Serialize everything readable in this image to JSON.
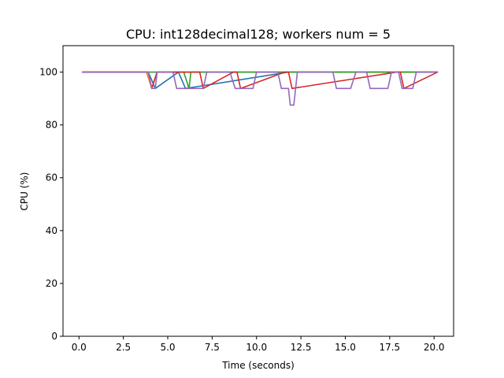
{
  "chart_data": {
    "type": "line",
    "title": "CPU: int128decimal128; workers num = 5",
    "xlabel": "Time (seconds)",
    "ylabel": "CPU (%)",
    "xlim": [
      -0.9,
      21.1
    ],
    "ylim": [
      0,
      110
    ],
    "xticks": [
      0.0,
      2.5,
      5.0,
      7.5,
      10.0,
      12.5,
      15.0,
      17.5,
      20.0
    ],
    "xtick_labels": [
      "0.0",
      "2.5",
      "5.0",
      "7.5",
      "10.0",
      "12.5",
      "15.0",
      "17.5",
      "20.0"
    ],
    "yticks": [
      0,
      20,
      40,
      60,
      80,
      100
    ],
    "ytick_labels": [
      "0",
      "20",
      "40",
      "60",
      "80",
      "100"
    ],
    "grid": false,
    "series": [
      {
        "color": "#1f77b4",
        "x": [
          0.2,
          3.9,
          4.3,
          5.6,
          6.0,
          11.8,
          12.2,
          20.2
        ],
        "y": [
          100,
          100,
          93.8,
          100,
          93.8,
          100,
          100,
          100
        ]
      },
      {
        "color": "#ff7f0e",
        "x": [
          0.2,
          3.8,
          4.1,
          4.4,
          20.2
        ],
        "y": [
          100,
          100,
          93.8,
          100,
          100
        ]
      },
      {
        "color": "#2ca02c",
        "x": [
          0.2,
          5.9,
          6.2,
          6.3,
          20.2
        ],
        "y": [
          100,
          100,
          93.8,
          100,
          100
        ]
      },
      {
        "color": "#d62728",
        "x": [
          0.2,
          3.9,
          4.1,
          4.4,
          6.8,
          7.0,
          8.7,
          8.9,
          9.1,
          11.6,
          11.8,
          12.0,
          17.9,
          18.1,
          18.3,
          20.2
        ],
        "y": [
          100,
          100,
          93.8,
          100,
          100,
          93.8,
          100,
          100,
          93.8,
          100,
          100,
          93.8,
          100,
          100,
          93.8,
          100
        ]
      },
      {
        "color": "#9467bd",
        "x": [
          0.2,
          3.9,
          4.1,
          4.3,
          4.4,
          5.3,
          5.5,
          6.1,
          6.3,
          7.0,
          7.2,
          8.5,
          8.8,
          9.8,
          10.0,
          11.2,
          11.4,
          11.8,
          11.9,
          12.1,
          12.3,
          14.3,
          14.5,
          15.3,
          15.6,
          16.2,
          16.4,
          17.4,
          17.6,
          18.0,
          18.2,
          18.8,
          19.0,
          20.2
        ],
        "y": [
          100,
          100,
          93.8,
          93.8,
          100,
          100,
          93.8,
          93.8,
          93.8,
          93.8,
          100,
          100,
          93.8,
          93.8,
          100,
          100,
          93.8,
          93.8,
          87.5,
          87.5,
          100,
          100,
          93.8,
          93.8,
          100,
          100,
          93.8,
          93.8,
          100,
          100,
          93.8,
          93.8,
          100,
          100
        ]
      }
    ]
  }
}
